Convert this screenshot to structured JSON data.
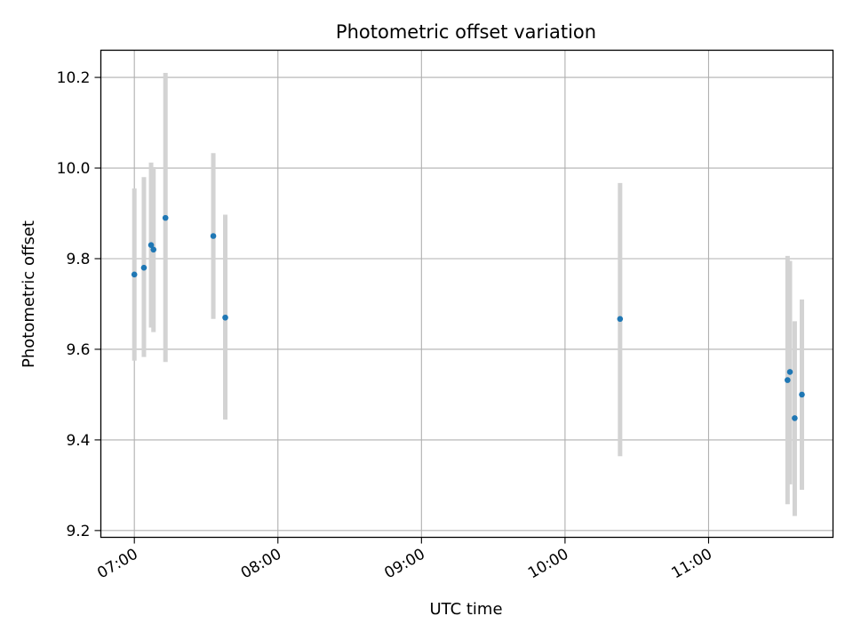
{
  "chart_data": {
    "type": "scatter",
    "title": "Photometric offset variation",
    "xlabel": "UTC time",
    "ylabel": "Photometric offset",
    "x_ticks": [
      "07:00",
      "08:00",
      "09:00",
      "10:00",
      "11:00"
    ],
    "y_ticks": [
      "9.2",
      "9.4",
      "9.6",
      "9.8",
      "10.0",
      "10.2"
    ],
    "xlim": [
      "06:46",
      "11:52"
    ],
    "ylim": [
      9.185,
      10.26
    ],
    "grid": true,
    "marker_color": "#1f77b4",
    "errorbar_color": "#d3d3d3",
    "points": [
      {
        "time": "07:00",
        "value": 9.765,
        "err_low": 9.575,
        "err_high": 9.955
      },
      {
        "time": "07:04",
        "value": 9.78,
        "err_low": 9.583,
        "err_high": 9.98
      },
      {
        "time": "07:07",
        "value": 9.83,
        "err_low": 9.648,
        "err_high": 10.012
      },
      {
        "time": "07:08",
        "value": 9.82,
        "err_low": 9.638,
        "err_high": 10.002
      },
      {
        "time": "07:13",
        "value": 9.89,
        "err_low": 9.572,
        "err_high": 10.21
      },
      {
        "time": "07:33",
        "value": 9.85,
        "err_low": 9.667,
        "err_high": 10.033
      },
      {
        "time": "07:38",
        "value": 9.67,
        "err_low": 9.445,
        "err_high": 9.897
      },
      {
        "time": "10:23",
        "value": 9.667,
        "err_low": 9.364,
        "err_high": 9.967
      },
      {
        "time": "11:33",
        "value": 9.532,
        "err_low": 9.258,
        "err_high": 9.806
      },
      {
        "time": "11:34",
        "value": 9.55,
        "err_low": 9.302,
        "err_high": 9.795
      },
      {
        "time": "11:36",
        "value": 9.448,
        "err_low": 9.232,
        "err_high": 9.662
      },
      {
        "time": "11:39",
        "value": 9.5,
        "err_low": 9.29,
        "err_high": 9.71
      }
    ]
  }
}
